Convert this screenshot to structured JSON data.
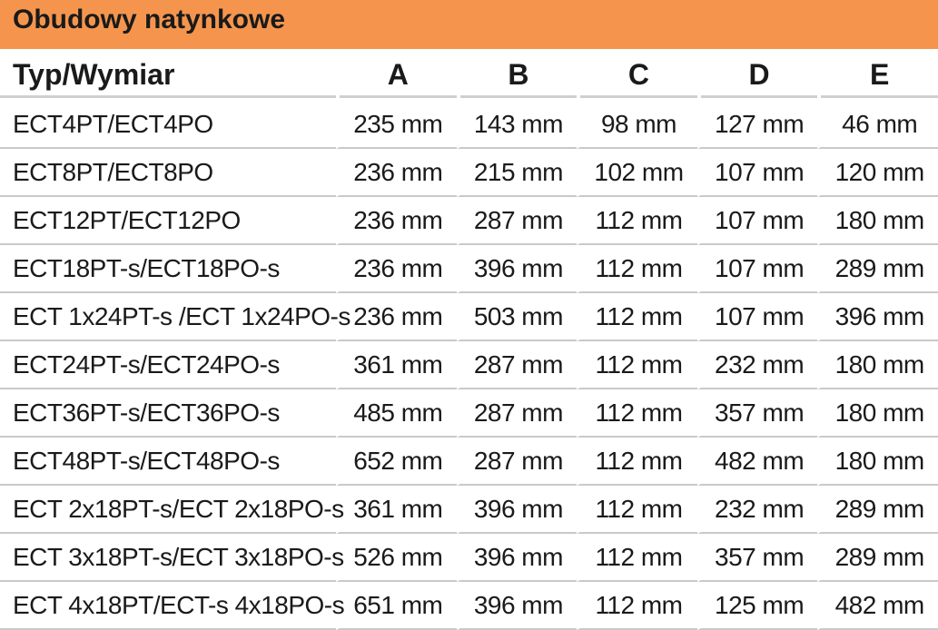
{
  "title": "Obudowy natynkowe",
  "colors": {
    "header_bar": "#f5954d",
    "text": "#1a1a1a",
    "divider": "#c9c9c9"
  },
  "table": {
    "headers": [
      "Typ/Wymiar",
      "A",
      "B",
      "C",
      "D",
      "E"
    ],
    "rows": [
      [
        "ECT4PT/ECT4PO",
        "235 mm",
        "143 mm",
        "98 mm",
        "127 mm",
        "46 mm"
      ],
      [
        "ECT8PT/ECT8PO",
        "236 mm",
        "215 mm",
        "102 mm",
        "107 mm",
        "120 mm"
      ],
      [
        "ECT12PT/ECT12PO",
        "236 mm",
        "287 mm",
        "112 mm",
        "107 mm",
        "180 mm"
      ],
      [
        "ECT18PT-s/ECT18PO-s",
        "236 mm",
        "396 mm",
        "112 mm",
        "107 mm",
        "289 mm"
      ],
      [
        "ECT 1x24PT-s /ECT 1x24PO-s",
        "236 mm",
        "503 mm",
        "112 mm",
        "107 mm",
        "396 mm"
      ],
      [
        "ECT24PT-s/ECT24PO-s",
        "361 mm",
        "287 mm",
        "112 mm",
        "232 mm",
        "180 mm"
      ],
      [
        "ECT36PT-s/ECT36PO-s",
        "485 mm",
        "287 mm",
        "112 mm",
        "357 mm",
        "180 mm"
      ],
      [
        "ECT48PT-s/ECT48PO-s",
        "652 mm",
        "287 mm",
        "112 mm",
        "482 mm",
        "180 mm"
      ],
      [
        "ECT 2x18PT-s/ECT 2x18PO-s",
        "361 mm",
        "396 mm",
        "112 mm",
        "232 mm",
        "289 mm"
      ],
      [
        "ECT 3x18PT-s/ECT 3x18PO-s",
        "526 mm",
        "396 mm",
        "112 mm",
        "357 mm",
        "289 mm"
      ],
      [
        "ECT 4x18PT/ECT-s 4x18PO-s",
        "651 mm",
        "396 mm",
        "112 mm",
        "125 mm",
        "482 mm"
      ]
    ]
  }
}
